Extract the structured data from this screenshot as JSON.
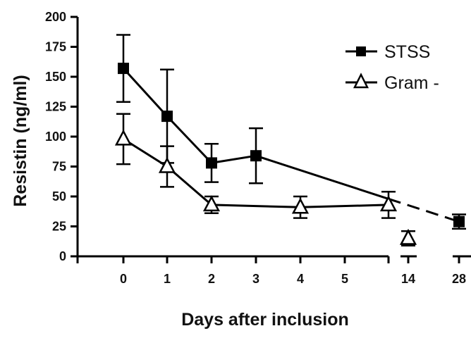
{
  "chart_data": {
    "type": "line",
    "title": "",
    "xlabel": "Days after inclusion",
    "ylabel": "Resistin (ng/ml)",
    "ylim": [
      0,
      200
    ],
    "y_ticks": [
      "0",
      "25",
      "50",
      "75",
      "100",
      "125",
      "150",
      "175",
      "200"
    ],
    "x_ticks": [
      "0",
      "1",
      "2",
      "3",
      "4",
      "5",
      "14",
      "28"
    ],
    "x_axis_note": "broken axis between 5 and 14 and between 14 and 28",
    "legend_position": "top-right",
    "series": [
      {
        "name": "STSS",
        "marker": "filled-square",
        "color": "#000000",
        "points": [
          {
            "x": "0",
            "y": 157,
            "err": 28
          },
          {
            "x": "1",
            "y": 117,
            "err": 39
          },
          {
            "x": "2",
            "y": 78,
            "err": 16
          },
          {
            "x": "3",
            "y": 84,
            "err": 23
          },
          {
            "x": "28",
            "y": 29,
            "err": 6
          }
        ]
      },
      {
        "name": "Gram -",
        "marker": "open-triangle",
        "color": "#000000",
        "points": [
          {
            "x": "0",
            "y": 98,
            "err": 21
          },
          {
            "x": "1",
            "y": 75,
            "err": 17
          },
          {
            "x": "2",
            "y": 43,
            "err": 7
          },
          {
            "x": "4",
            "y": 41,
            "err": 9
          },
          {
            "x": "5+",
            "y": 43,
            "err": 11
          },
          {
            "x": "14",
            "y": 15,
            "err": 6
          }
        ]
      }
    ]
  }
}
